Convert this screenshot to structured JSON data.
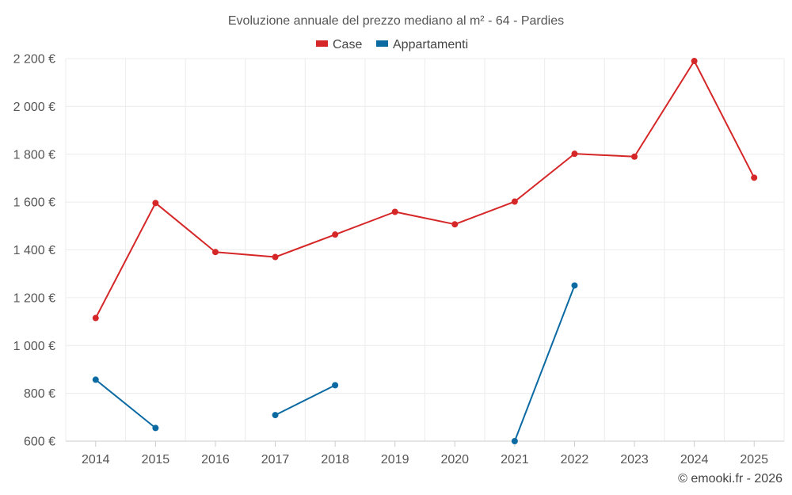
{
  "chart_data": {
    "type": "line",
    "title": "Evoluzione annuale del prezzo mediano al m² - 64 - Pardies",
    "categories": [
      "2014",
      "2015",
      "2016",
      "2017",
      "2018",
      "2019",
      "2020",
      "2021",
      "2022",
      "2023",
      "2024",
      "2025"
    ],
    "ylim": [
      600,
      2200
    ],
    "yticks": [
      600,
      800,
      1000,
      1200,
      1400,
      1600,
      1800,
      2000,
      2200
    ],
    "ytick_labels": [
      "600 €",
      "800 €",
      "1 000 €",
      "1 200 €",
      "1 400 €",
      "1 600 €",
      "1 800 €",
      "2 000 €",
      "2 200 €"
    ],
    "grid": true,
    "legend_position": "top-center",
    "series": [
      {
        "name": "Case",
        "color": "#d62728",
        "values": [
          1115,
          1596,
          1391,
          1370,
          1464,
          1559,
          1507,
          1602,
          1802,
          1790,
          2190,
          1702
        ]
      },
      {
        "name": "Appartamenti",
        "color": "#0b6aa2",
        "values": [
          857,
          655,
          null,
          709,
          834,
          null,
          null,
          600,
          1251,
          null,
          null,
          null
        ]
      }
    ]
  },
  "credit": "© emooki.fr - 2026"
}
